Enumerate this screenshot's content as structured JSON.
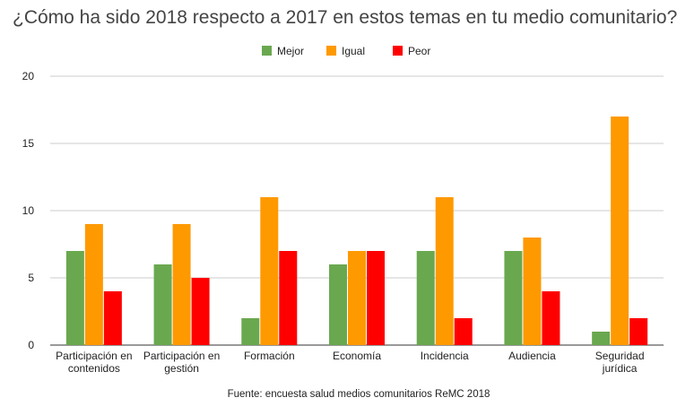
{
  "chart_data": {
    "type": "bar",
    "title": "¿Cómo ha sido 2018 respecto a 2017 en estos temas en tu medio comunitario?",
    "categories": [
      [
        "Participación en",
        "contenidos"
      ],
      [
        "Participación en",
        "gestión"
      ],
      [
        "Formación"
      ],
      [
        "Economía"
      ],
      [
        "Incidencia"
      ],
      [
        "Audiencia"
      ],
      [
        "Seguridad",
        "jurídica"
      ]
    ],
    "series": [
      {
        "name": "Mejor",
        "color": "#6aa84f",
        "values": [
          7,
          6,
          2,
          6,
          7,
          7,
          1
        ]
      },
      {
        "name": "Igual",
        "color": "#ff9900",
        "values": [
          9,
          9,
          11,
          7,
          11,
          8,
          17
        ]
      },
      {
        "name": "Peor",
        "color": "#ff0000",
        "values": [
          4,
          5,
          7,
          7,
          2,
          4,
          2
        ]
      }
    ],
    "ylim": [
      0,
      20
    ],
    "yticks": [
      0,
      5,
      10,
      15,
      20
    ],
    "xlabel": "",
    "ylabel": "",
    "grid": true,
    "legend_position": "top-center",
    "source": "Fuente: encuesta salud medios comunitarios ReMC 2018"
  }
}
